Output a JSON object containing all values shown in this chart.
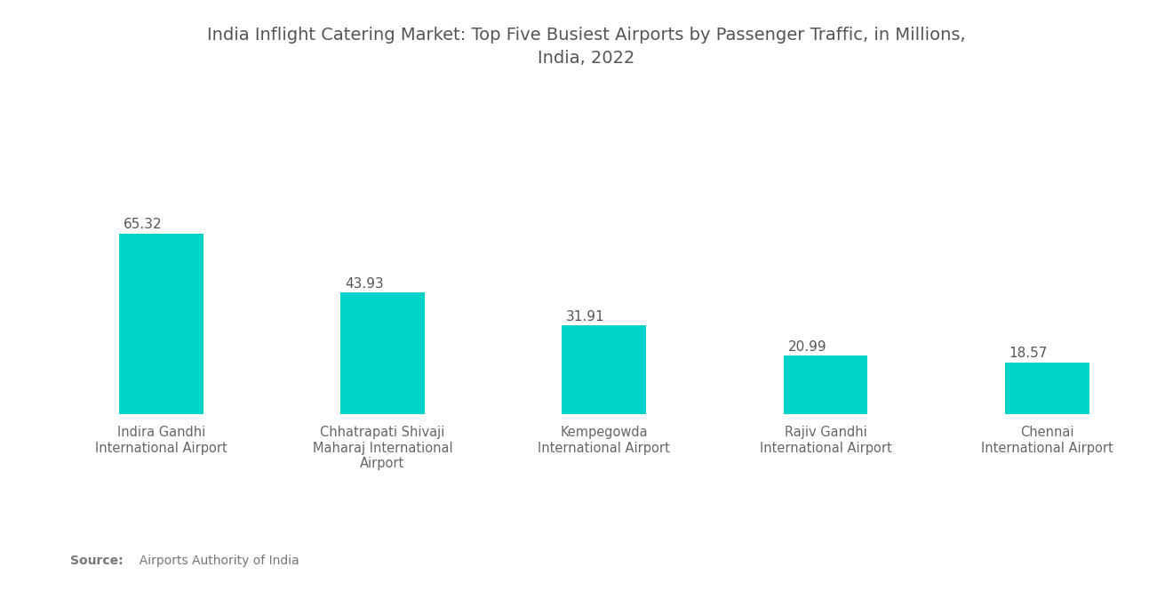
{
  "title": "India Inflight Catering Market: Top Five Busiest Airports by Passenger Traffic, in Millions,\nIndia, 2022",
  "categories": [
    "Indira Gandhi\nInternational Airport",
    "Chhatrapati Shivaji\nMaharaj International\nAirport",
    "Kempegowda\nInternational Airport",
    "Rajiv Gandhi\nInternational Airport",
    "Chennai\nInternational Airport"
  ],
  "values": [
    65.32,
    43.93,
    31.91,
    20.99,
    18.57
  ],
  "bar_color": "#00D4C8",
  "background_color": "#ffffff",
  "title_fontsize": 14,
  "label_fontsize": 10.5,
  "value_fontsize": 11,
  "source_text_bold": "Source:",
  "source_text": "  Airports Authority of India",
  "ylim": [
    0,
    90
  ],
  "title_color": "#555555",
  "tick_label_color": "#666666",
  "value_label_color": "#555555",
  "source_color": "#777777"
}
